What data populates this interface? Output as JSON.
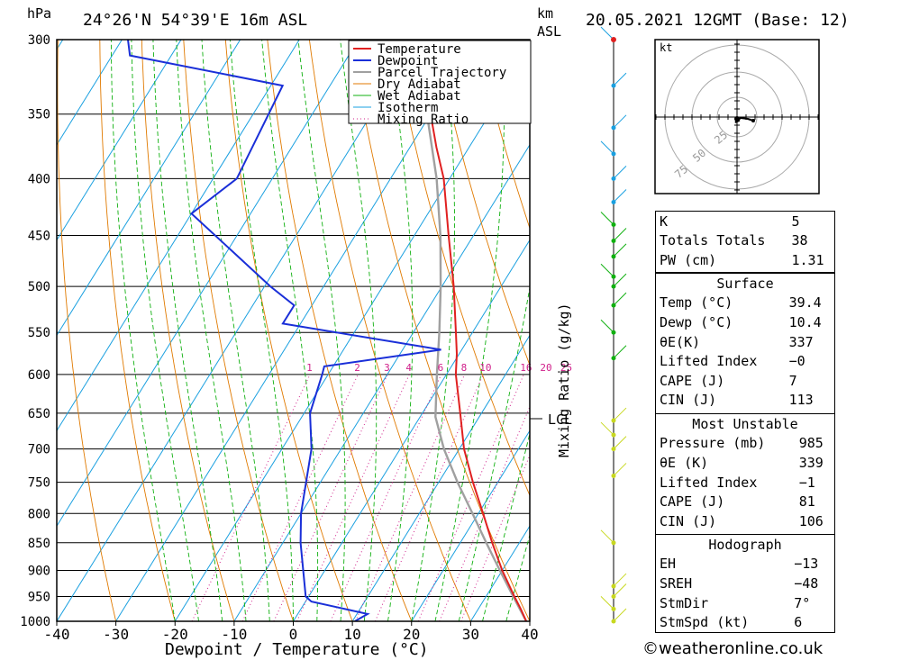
{
  "header": {
    "location": "24°26'N  54°39'E  16m  ASL",
    "datetime": "20.05.2021  12GMT  (Base: 12)",
    "hpa_label": "hPa",
    "km_label": "km",
    "asl_label": "ASL"
  },
  "chart_data": {
    "type": "skew-t",
    "xlabel": "Dewpoint / Temperature (°C)",
    "ylabel_right": "Mixing Ratio (g/kg)",
    "x_ticks": [
      "-40",
      "-30",
      "-20",
      "-10",
      "0",
      "10",
      "20",
      "30",
      "40"
    ],
    "x_range": [
      -40,
      40
    ],
    "pressure_levels": [
      300,
      350,
      400,
      450,
      500,
      550,
      600,
      650,
      700,
      750,
      800,
      850,
      900,
      950,
      1000
    ],
    "pressure_labels": [
      "300",
      "350",
      "400",
      "450",
      "500",
      "550",
      "600",
      "650",
      "700",
      "750",
      "800",
      "850",
      "900",
      "950",
      "1000"
    ],
    "pressure_range": [
      300,
      1000
    ],
    "log_pressure": true,
    "legend": [
      "Temperature",
      "Dewpoint",
      "Parcel Trajectory",
      "Dry Adiabat",
      "Wet Adiabat",
      "Isotherm",
      "Mixing Ratio"
    ],
    "legend_placement": "top-center",
    "mixing_ratio_labels": [
      "1",
      "2",
      "3",
      "4",
      "6",
      "8",
      "10",
      "16",
      "20",
      "25"
    ],
    "lcl_label": "LCL",
    "lcl_pressure": 655,
    "temperature": [
      {
        "p": 1000,
        "t": 39.4
      },
      {
        "p": 975,
        "t": 37.2
      },
      {
        "p": 950,
        "t": 34.8
      },
      {
        "p": 900,
        "t": 30.0
      },
      {
        "p": 850,
        "t": 25.4
      },
      {
        "p": 800,
        "t": 20.8
      },
      {
        "p": 750,
        "t": 15.8
      },
      {
        "p": 700,
        "t": 10.8
      },
      {
        "p": 650,
        "t": 6.4
      },
      {
        "p": 600,
        "t": 1.6
      },
      {
        "p": 575,
        "t": -0.4
      },
      {
        "p": 550,
        "t": -2.8
      },
      {
        "p": 500,
        "t": -8.0
      },
      {
        "p": 450,
        "t": -14.2
      },
      {
        "p": 400,
        "t": -21.0
      },
      {
        "p": 375,
        "t": -25.5
      },
      {
        "p": 350,
        "t": -30.0
      },
      {
        "p": 325,
        "t": -35.6
      },
      {
        "p": 300,
        "t": -39.5
      }
    ],
    "dewpoint": [
      {
        "p": 1000,
        "t": 10.4
      },
      {
        "p": 985,
        "t": 11.8
      },
      {
        "p": 960,
        "t": 1.0
      },
      {
        "p": 950,
        "t": -0.5
      },
      {
        "p": 850,
        "t": -7.0
      },
      {
        "p": 800,
        "t": -10.0
      },
      {
        "p": 700,
        "t": -15.0
      },
      {
        "p": 650,
        "t": -19.0
      },
      {
        "p": 600,
        "t": -21.0
      },
      {
        "p": 590,
        "t": -21.5
      },
      {
        "p": 570,
        "t": -3.5
      },
      {
        "p": 540,
        "t": -33.0
      },
      {
        "p": 520,
        "t": -33.0
      },
      {
        "p": 500,
        "t": -39.0
      },
      {
        "p": 430,
        "t": -60.0
      },
      {
        "p": 400,
        "t": -56.0
      },
      {
        "p": 330,
        "t": -58.0
      },
      {
        "p": 310,
        "t": -87.0
      },
      {
        "p": 300,
        "t": -89.0
      }
    ],
    "parcel": [
      {
        "p": 1000,
        "t": 39.4
      },
      {
        "p": 950,
        "t": 34.6
      },
      {
        "p": 900,
        "t": 29.6
      },
      {
        "p": 850,
        "t": 24.4
      },
      {
        "p": 800,
        "t": 19.0
      },
      {
        "p": 750,
        "t": 13.2
      },
      {
        "p": 700,
        "t": 7.4
      },
      {
        "p": 655,
        "t": 2.6
      },
      {
        "p": 600,
        "t": -1.6
      },
      {
        "p": 550,
        "t": -5.6
      },
      {
        "p": 500,
        "t": -10.2
      },
      {
        "p": 450,
        "t": -15.6
      },
      {
        "p": 400,
        "t": -22.2
      },
      {
        "p": 350,
        "t": -30.6
      },
      {
        "p": 300,
        "t": -41.0
      }
    ],
    "wind_barbs_pressure": [
      300,
      330,
      360,
      380,
      400,
      420,
      440,
      455,
      470,
      490,
      500,
      520,
      550,
      580,
      660,
      680,
      700,
      740,
      850,
      930,
      950,
      975,
      1000
    ]
  },
  "hodograph": {
    "unit_label": "kt",
    "ring_labels": [
      "25",
      "50",
      "75"
    ]
  },
  "indices": {
    "rows": [
      {
        "label": "K",
        "value": "5"
      },
      {
        "label": "Totals Totals",
        "value": "38"
      },
      {
        "label": "PW (cm)",
        "value": "1.31"
      }
    ]
  },
  "surface": {
    "title": "Surface",
    "rows": [
      {
        "label": "Temp (°C)",
        "value": "39.4"
      },
      {
        "label": "Dewp (°C)",
        "value": "10.4"
      },
      {
        "label": "θE(K)",
        "value": "337"
      },
      {
        "label": "Lifted Index",
        "value": "−0"
      },
      {
        "label": "CAPE (J)",
        "value": "7"
      },
      {
        "label": "CIN (J)",
        "value": "113"
      }
    ]
  },
  "most_unstable": {
    "title": "Most Unstable",
    "rows": [
      {
        "label": "Pressure (mb)",
        "value": "985"
      },
      {
        "label": "θE (K)",
        "value": "339"
      },
      {
        "label": "Lifted Index",
        "value": "−1"
      },
      {
        "label": "CAPE (J)",
        "value": "81"
      },
      {
        "label": "CIN (J)",
        "value": "106"
      }
    ]
  },
  "hodograph_params": {
    "title": "Hodograph",
    "rows": [
      {
        "label": "EH",
        "value": "−13"
      },
      {
        "label": "SREH",
        "value": "−48"
      },
      {
        "label": "StmDir",
        "value": "7°"
      },
      {
        "label": "StmSpd (kt)",
        "value": "6"
      }
    ]
  },
  "credit": "©weatheronline.co.uk",
  "colors": {
    "temperature": "#e02020",
    "dewpoint": "#1a2fd8",
    "parcel": "#a0a0a0",
    "dry_adiabat": "#e07a00",
    "wet_adiabat": "#10b010",
    "isotherm": "#1aa0e0",
    "mixing_ratio": "#d0208a"
  }
}
